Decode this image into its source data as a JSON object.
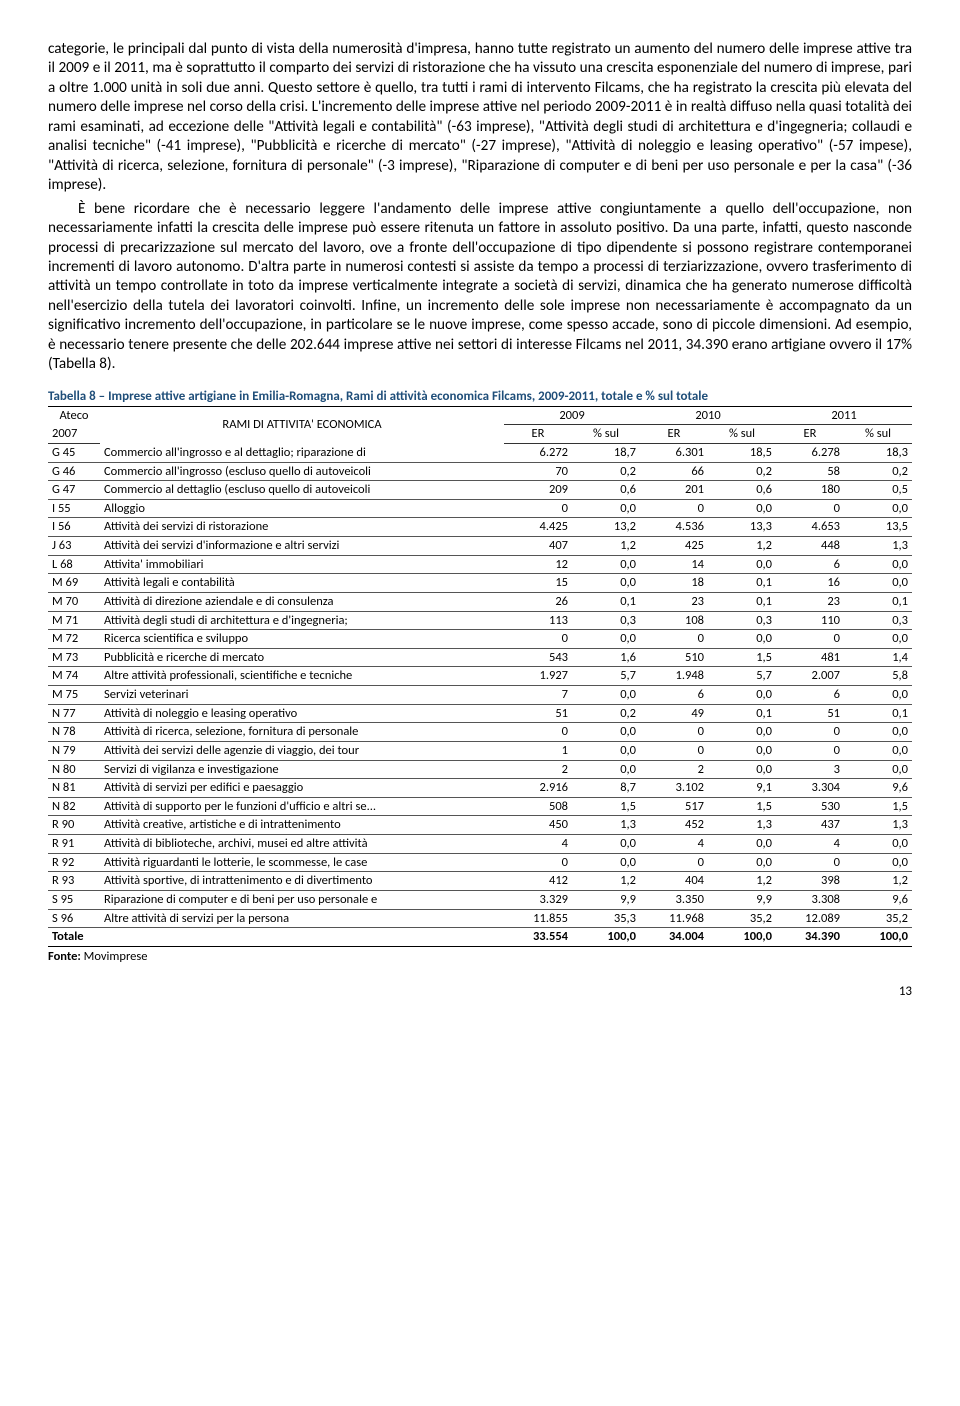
{
  "para1": "categorie, le principali dal punto di vista della numerosità d'impresa, hanno tutte registrato un aumento del numero delle imprese attive tra il 2009 e il 2011, ma è soprattutto il comparto dei servizi di ristorazione che ha vissuto una crescita esponenziale del numero di imprese, pari a oltre 1.000 unità in soli due anni. Questo settore è quello, tra tutti i rami di intervento Filcams, che ha registrato la crescita più elevata del numero delle imprese nel corso della crisi. L'incremento delle imprese attive nel periodo 2009-2011 è in realtà diffuso nella quasi totalità dei rami esaminati, ad eccezione delle \"Attività legali e contabilità\" (-63 imprese), \"Attività degli studi di architettura e d'ingegneria; collaudi e analisi tecniche\" (-41 imprese), \"Pubblicità e ricerche di mercato\" (-27 imprese), \"Attività di noleggio e leasing operativo\" (-57 impese), \"Attività di ricerca, selezione, fornitura di personale\" (-3 imprese), \"Riparazione di computer e di beni per uso personale e per la casa\" (-36 imprese).",
  "para2": "È bene ricordare che è necessario leggere l'andamento delle imprese attive congiuntamente a quello dell'occupazione, non necessariamente infatti la crescita delle imprese può essere ritenuta un fattore in assoluto positivo. Da una parte, infatti, questo nasconde processi di precarizzazione sul mercato del lavoro, ove a fronte dell'occupazione di tipo dipendente si possono registrare contemporanei incrementi di lavoro autonomo. D'altra parte in numerosi contesti si assiste da tempo a processi di terziarizzazione, ovvero trasferimento di attività un tempo controllate in toto da imprese verticalmente integrate a società di servizi, dinamica che ha generato numerose difficoltà nell'esercizio della tutela dei lavoratori coinvolti. Infine, un incremento delle sole imprese non necessariamente è accompagnato da un significativo incremento dell'occupazione, in particolare se le nuove imprese, come spesso accade, sono di piccole dimensioni. Ad esempio, è necessario tenere presente che delle 202.644 imprese attive nei settori di interesse Filcams nel 2011, 34.390 erano artigiane ovvero il 17% (Tabella 8).",
  "table": {
    "caption": "Tabella 8 – Imprese attive artigiane in Emilia-Romagna, Rami di attività economica Filcams, 2009-2011, totale e % sul totale",
    "header": {
      "ateco_top": "Ateco",
      "ateco_bottom": "2007",
      "rami": "RAMI DI ATTIVITA' ECONOMICA",
      "y2009": "2009",
      "y2010": "2010",
      "y2011": "2011",
      "er": "ER",
      "pct": "% sul"
    },
    "rows": [
      {
        "code": "G 45",
        "label": "Commercio all'ingrosso e al dettaglio; riparazione di",
        "v": [
          "6.272",
          "18,7",
          "6.301",
          "18,5",
          "6.278",
          "18,3"
        ]
      },
      {
        "code": "G 46",
        "label": "Commercio all'ingrosso (escluso quello di autoveicoli",
        "v": [
          "70",
          "0,2",
          "66",
          "0,2",
          "58",
          "0,2"
        ]
      },
      {
        "code": "G 47",
        "label": "Commercio al dettaglio (escluso quello di autoveicoli",
        "v": [
          "209",
          "0,6",
          "201",
          "0,6",
          "180",
          "0,5"
        ]
      },
      {
        "code": "I 55",
        "label": "Alloggio",
        "v": [
          "0",
          "0,0",
          "0",
          "0,0",
          "0",
          "0,0"
        ]
      },
      {
        "code": "I 56",
        "label": "Attività dei servizi di ristorazione",
        "v": [
          "4.425",
          "13,2",
          "4.536",
          "13,3",
          "4.653",
          "13,5"
        ]
      },
      {
        "code": "J 63",
        "label": "Attività dei servizi d'informazione e altri servizi",
        "v": [
          "407",
          "1,2",
          "425",
          "1,2",
          "448",
          "1,3"
        ]
      },
      {
        "code": "L 68",
        "label": "Attivita' immobiliari",
        "v": [
          "12",
          "0,0",
          "14",
          "0,0",
          "6",
          "0,0"
        ]
      },
      {
        "code": "M 69",
        "label": "Attività legali e contabilità",
        "v": [
          "15",
          "0,0",
          "18",
          "0,1",
          "16",
          "0,0"
        ]
      },
      {
        "code": "M 70",
        "label": "Attività di direzione aziendale e di consulenza",
        "v": [
          "26",
          "0,1",
          "23",
          "0,1",
          "23",
          "0,1"
        ]
      },
      {
        "code": "M 71",
        "label": "Attività degli studi di architettura e d'ingegneria;",
        "v": [
          "113",
          "0,3",
          "108",
          "0,3",
          "110",
          "0,3"
        ]
      },
      {
        "code": "M 72",
        "label": "Ricerca scientifica e sviluppo",
        "v": [
          "0",
          "0,0",
          "0",
          "0,0",
          "0",
          "0,0"
        ]
      },
      {
        "code": "M 73",
        "label": "Pubblicità e ricerche di mercato",
        "v": [
          "543",
          "1,6",
          "510",
          "1,5",
          "481",
          "1,4"
        ]
      },
      {
        "code": "M 74",
        "label": "Altre attività professionali, scientifiche e tecniche",
        "v": [
          "1.927",
          "5,7",
          "1.948",
          "5,7",
          "2.007",
          "5,8"
        ]
      },
      {
        "code": "M 75",
        "label": "Servizi veterinari",
        "v": [
          "7",
          "0,0",
          "6",
          "0,0",
          "6",
          "0,0"
        ]
      },
      {
        "code": "N 77",
        "label": "Attività di noleggio e leasing operativo",
        "v": [
          "51",
          "0,2",
          "49",
          "0,1",
          "51",
          "0,1"
        ]
      },
      {
        "code": "N 78",
        "label": "Attività di ricerca, selezione, fornitura di personale",
        "v": [
          "0",
          "0,0",
          "0",
          "0,0",
          "0",
          "0,0"
        ]
      },
      {
        "code": "N 79",
        "label": "Attività dei servizi delle agenzie di viaggio, dei tour",
        "v": [
          "1",
          "0,0",
          "0",
          "0,0",
          "0",
          "0,0"
        ]
      },
      {
        "code": "N 80",
        "label": "Servizi di vigilanza e investigazione",
        "v": [
          "2",
          "0,0",
          "2",
          "0,0",
          "3",
          "0,0"
        ]
      },
      {
        "code": "N 81",
        "label": "Attività di servizi per edifici e paesaggio",
        "v": [
          "2.916",
          "8,7",
          "3.102",
          "9,1",
          "3.304",
          "9,6"
        ]
      },
      {
        "code": "N 82",
        "label": "Attività di supporto per le funzioni d'ufficio e altri se...",
        "v": [
          "508",
          "1,5",
          "517",
          "1,5",
          "530",
          "1,5"
        ]
      },
      {
        "code": "R 90",
        "label": "Attività creative, artistiche e di intrattenimento",
        "v": [
          "450",
          "1,3",
          "452",
          "1,3",
          "437",
          "1,3"
        ]
      },
      {
        "code": "R 91",
        "label": "Attività di biblioteche, archivi, musei ed altre attività",
        "v": [
          "4",
          "0,0",
          "4",
          "0,0",
          "4",
          "0,0"
        ]
      },
      {
        "code": "R 92",
        "label": "Attività riguardanti le lotterie, le scommesse, le case",
        "v": [
          "0",
          "0,0",
          "0",
          "0,0",
          "0",
          "0,0"
        ]
      },
      {
        "code": "R 93",
        "label": "Attività sportive, di intrattenimento e di divertimento",
        "v": [
          "412",
          "1,2",
          "404",
          "1,2",
          "398",
          "1,2"
        ]
      },
      {
        "code": "S 95",
        "label": "Riparazione di computer e di beni per uso personale e",
        "v": [
          "3.329",
          "9,9",
          "3.350",
          "9,9",
          "3.308",
          "9,6"
        ]
      },
      {
        "code": "S 96",
        "label": "Altre attività di servizi per la persona",
        "v": [
          "11.855",
          "35,3",
          "11.968",
          "35,2",
          "12.089",
          "35,2"
        ]
      }
    ],
    "total": {
      "code": "Totale",
      "label": "",
      "v": [
        "33.554",
        "100,0",
        "34.004",
        "100,0",
        "34.390",
        "100,0"
      ]
    },
    "source_label": "Fonte:",
    "source_value": " Movimprese"
  },
  "page_number": "13"
}
